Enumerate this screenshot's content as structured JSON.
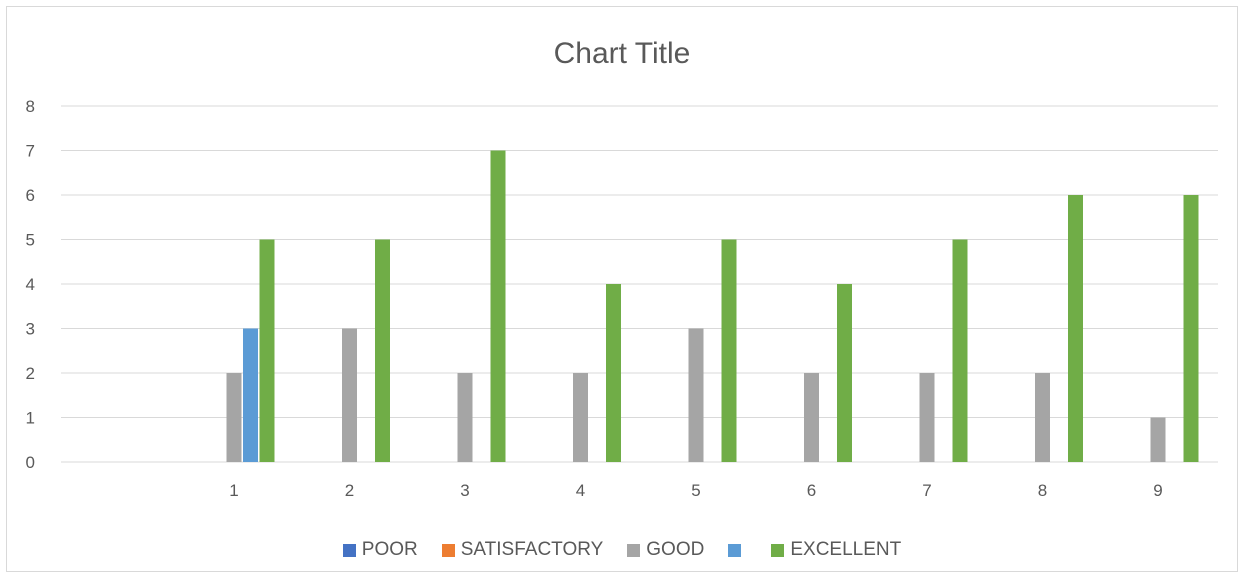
{
  "chart_data": {
    "type": "bar",
    "title": "Chart Title",
    "xlabel": "",
    "ylabel": "",
    "ylim": [
      0,
      8
    ],
    "yticks": [
      0,
      1,
      2,
      3,
      4,
      5,
      6,
      7,
      8
    ],
    "grid": true,
    "legend_position": "bottom",
    "categories": [
      "1",
      "2",
      "3",
      "4",
      "5",
      "6",
      "7",
      "8",
      "9"
    ],
    "series": [
      {
        "name": "POOR",
        "color": "#4472c4",
        "values": [
          0,
          0,
          0,
          0,
          0,
          0,
          0,
          0,
          0
        ]
      },
      {
        "name": "SATISFACTORY",
        "color": "#ed7d31",
        "values": [
          0,
          0,
          0,
          0,
          0,
          0,
          0,
          0,
          0
        ]
      },
      {
        "name": "GOOD",
        "color": "#a5a5a5",
        "values": [
          2,
          3,
          2,
          2,
          3,
          2,
          2,
          2,
          1
        ]
      },
      {
        "name": "",
        "color": "#5b9bd5",
        "values": [
          3,
          0,
          0,
          0,
          0,
          0,
          0,
          0,
          0
        ]
      },
      {
        "name": "EXCELLENT",
        "color": "#70ad47",
        "values": [
          5,
          5,
          7,
          4,
          5,
          4,
          5,
          6,
          6
        ]
      }
    ]
  },
  "colors": {
    "grid": "#d9d9d9",
    "axis": "#d9d9d9",
    "text": "#595959"
  }
}
